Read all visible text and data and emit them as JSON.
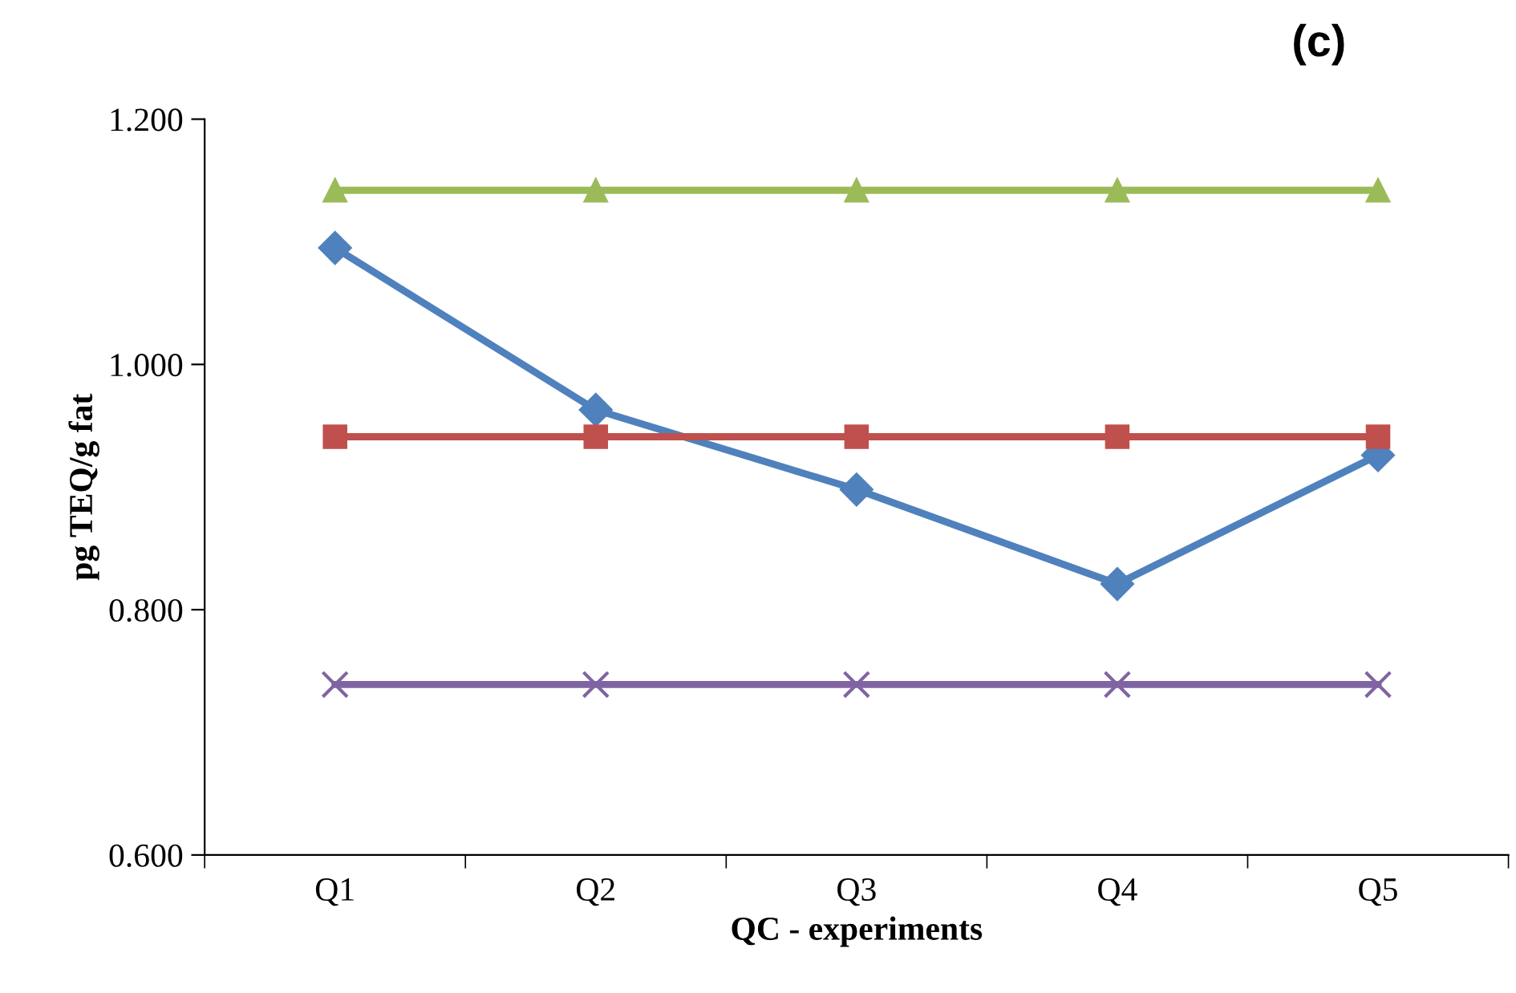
{
  "chart_data": {
    "type": "line",
    "title": "(c)",
    "xlabel": "QC - experiments",
    "ylabel": "pg TEQ/g fat",
    "categories": [
      "Q1",
      "Q2",
      "Q3",
      "Q4",
      "Q5"
    ],
    "series": [
      {
        "color": "#4f81bd",
        "marker": "diamond",
        "values": [
          1.095,
          0.963,
          0.898,
          0.821,
          0.926
        ]
      },
      {
        "color": "#c0504d",
        "marker": "square",
        "values": [
          0.941,
          0.941,
          0.941,
          0.941,
          0.941
        ]
      },
      {
        "color": "#9bbb59",
        "marker": "triangle",
        "values": [
          1.142,
          1.142,
          1.142,
          1.142,
          1.142
        ]
      },
      {
        "color": "#8064a2",
        "marker": "cross",
        "values": [
          0.739,
          0.739,
          0.739,
          0.739,
          0.739
        ]
      }
    ],
    "ylim": [
      0.6,
      1.2
    ],
    "yticks": [
      {
        "value": 0.6,
        "label": "0.600"
      },
      {
        "value": 0.8,
        "label": "0.800"
      },
      {
        "value": 1.0,
        "label": "1.000"
      },
      {
        "value": 1.2,
        "label": "1.200"
      }
    ],
    "grid": false,
    "line_style": "solid"
  }
}
